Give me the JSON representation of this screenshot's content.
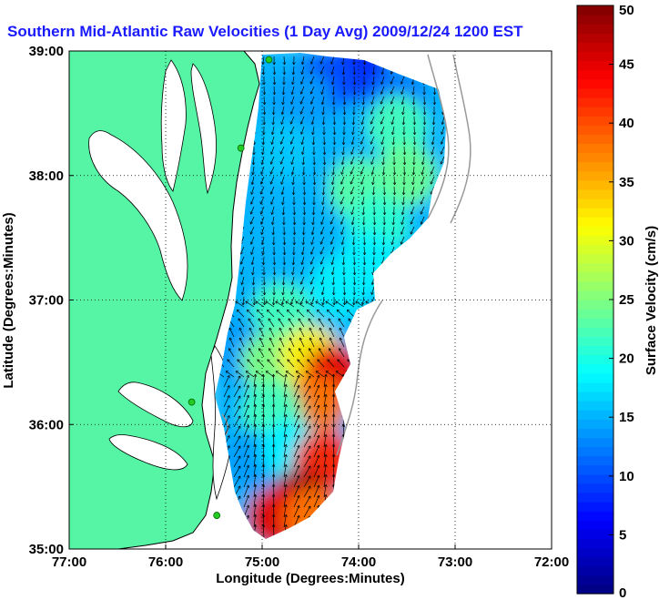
{
  "chart_data": {
    "type": "heatmap",
    "title": "Southern Mid-Atlantic Raw Velocities (1 Day Avg) 2009/12/24 1200 EST",
    "xlabel": "Longitude (Degrees:Minutes)",
    "ylabel": "Latitude (Degrees:Minutes)",
    "colorbar_label": "Surface Velocity (cm/s)",
    "xlim": [
      -77,
      -72
    ],
    "ylim": [
      35,
      39
    ],
    "x_ticks": [
      {
        "value": -77,
        "label": "77:00"
      },
      {
        "value": -76,
        "label": "76:00"
      },
      {
        "value": -75,
        "label": "75:00"
      },
      {
        "value": -74,
        "label": "74:00"
      },
      {
        "value": -73,
        "label": "73:00"
      },
      {
        "value": -72,
        "label": "72:00"
      }
    ],
    "y_ticks": [
      {
        "value": 35,
        "label": "35:00"
      },
      {
        "value": 36,
        "label": "36:00"
      },
      {
        "value": 37,
        "label": "37:00"
      },
      {
        "value": 38,
        "label": "38:00"
      },
      {
        "value": 39,
        "label": "39:00"
      }
    ],
    "colorbar_range": [
      0,
      50
    ],
    "colorbar_ticks": [
      0,
      5,
      10,
      15,
      20,
      25,
      30,
      35,
      40,
      45,
      50
    ],
    "grid": true,
    "colormap": "jet",
    "colors": {
      "land": "#55f5a5",
      "coast_line": "#000000",
      "isobath": "#999999",
      "vector": "#000000",
      "site_marker": "#22cc22",
      "title": "#1a1aff"
    },
    "velocity_regions": [
      {
        "lon": -74.0,
        "lat": 38.85,
        "speed": 8
      },
      {
        "lon": -74.35,
        "lat": 38.75,
        "speed": 10
      },
      {
        "lon": -73.6,
        "lat": 38.6,
        "speed": 12
      },
      {
        "lon": -74.6,
        "lat": 38.6,
        "speed": 14
      },
      {
        "lon": -74.8,
        "lat": 38.2,
        "speed": 16
      },
      {
        "lon": -73.6,
        "lat": 38.4,
        "speed": 22
      },
      {
        "lon": -73.5,
        "lat": 38.0,
        "speed": 24
      },
      {
        "lon": -74.0,
        "lat": 37.9,
        "speed": 23
      },
      {
        "lon": -73.8,
        "lat": 37.6,
        "speed": 21
      },
      {
        "lon": -73.9,
        "lat": 37.3,
        "speed": 18
      },
      {
        "lon": -74.6,
        "lat": 37.6,
        "speed": 15
      },
      {
        "lon": -74.2,
        "lat": 37.1,
        "speed": 18
      },
      {
        "lon": -74.8,
        "lat": 36.9,
        "speed": 22
      },
      {
        "lon": -75.25,
        "lat": 36.6,
        "speed": 14
      },
      {
        "lon": -74.9,
        "lat": 36.5,
        "speed": 25
      },
      {
        "lon": -74.5,
        "lat": 36.55,
        "speed": 32
      },
      {
        "lon": -74.25,
        "lat": 36.4,
        "speed": 45
      },
      {
        "lon": -74.45,
        "lat": 36.15,
        "speed": 38
      },
      {
        "lon": -74.9,
        "lat": 36.1,
        "speed": 22
      },
      {
        "lon": -75.1,
        "lat": 35.7,
        "speed": 14
      },
      {
        "lon": -74.7,
        "lat": 35.8,
        "speed": 18
      },
      {
        "lon": -74.35,
        "lat": 35.7,
        "speed": 42
      },
      {
        "lon": -74.6,
        "lat": 35.4,
        "speed": 48
      },
      {
        "lon": -74.85,
        "lat": 35.25,
        "speed": 45
      },
      {
        "lon": -74.45,
        "lat": 35.25,
        "speed": 38
      }
    ],
    "sites": [
      {
        "lon": -74.93,
        "lat": 38.93
      },
      {
        "lon": -75.22,
        "lat": 38.22
      },
      {
        "lon": -75.73,
        "lat": 36.18
      },
      {
        "lon": -75.47,
        "lat": 35.27
      }
    ]
  }
}
